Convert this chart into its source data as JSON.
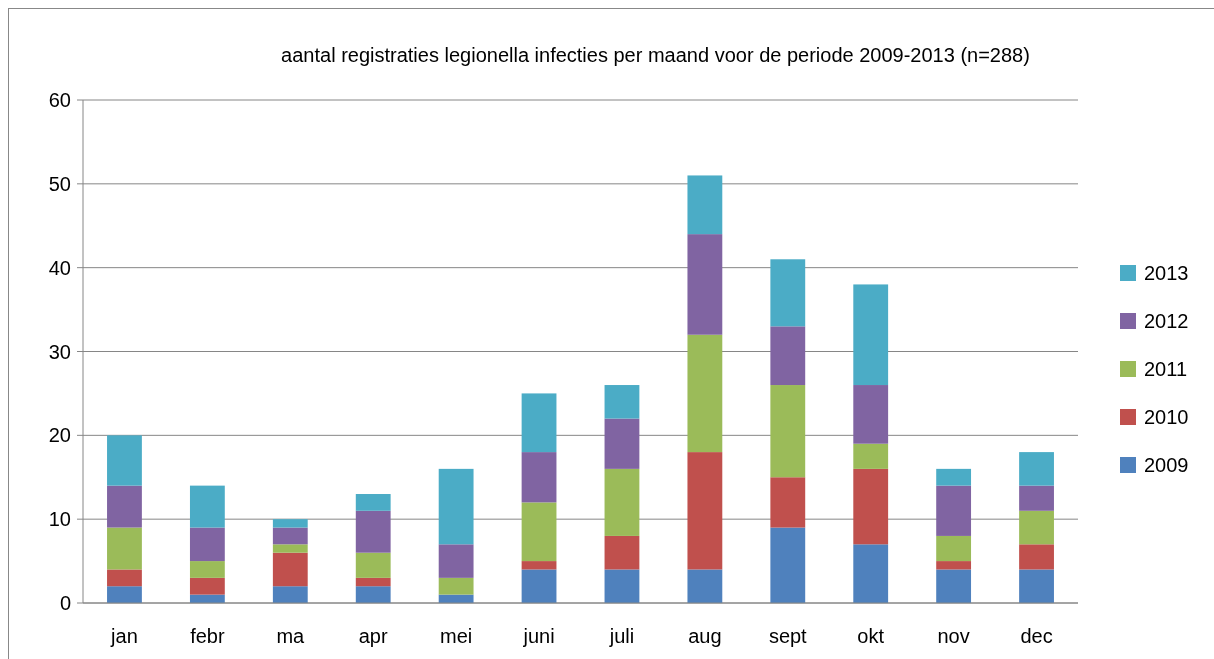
{
  "chart_data": {
    "type": "bar",
    "title": "aantal registraties legionella infecties  per maand voor de periode 2009-2013 (n=288)",
    "categories": [
      "jan",
      "febr",
      "ma",
      "apr",
      "mei",
      "juni",
      "juli",
      "aug",
      "sept",
      "okt",
      "nov",
      "dec"
    ],
    "stacked": true,
    "series": [
      {
        "name": "2009",
        "color": "#4f81bd",
        "values": [
          2,
          1,
          2,
          2,
          1,
          4,
          4,
          4,
          9,
          7,
          4,
          4
        ]
      },
      {
        "name": "2010",
        "color": "#c0504d",
        "values": [
          2,
          2,
          4,
          1,
          0,
          1,
          4,
          14,
          6,
          9,
          1,
          3
        ]
      },
      {
        "name": "2011",
        "color": "#9bbb59",
        "values": [
          5,
          2,
          1,
          3,
          2,
          7,
          8,
          14,
          11,
          3,
          3,
          4
        ]
      },
      {
        "name": "2012",
        "color": "#8064a2",
        "values": [
          5,
          4,
          2,
          5,
          4,
          6,
          6,
          12,
          7,
          7,
          6,
          3
        ]
      },
      {
        "name": "2013",
        "color": "#4bacc6",
        "values": [
          6,
          5,
          1,
          2,
          9,
          7,
          4,
          7,
          8,
          12,
          2,
          4
        ]
      }
    ],
    "ylim": [
      0,
      60
    ],
    "yticks": [
      0,
      10,
      20,
      30,
      40,
      50,
      60
    ],
    "grid": "y",
    "legend": "right"
  }
}
